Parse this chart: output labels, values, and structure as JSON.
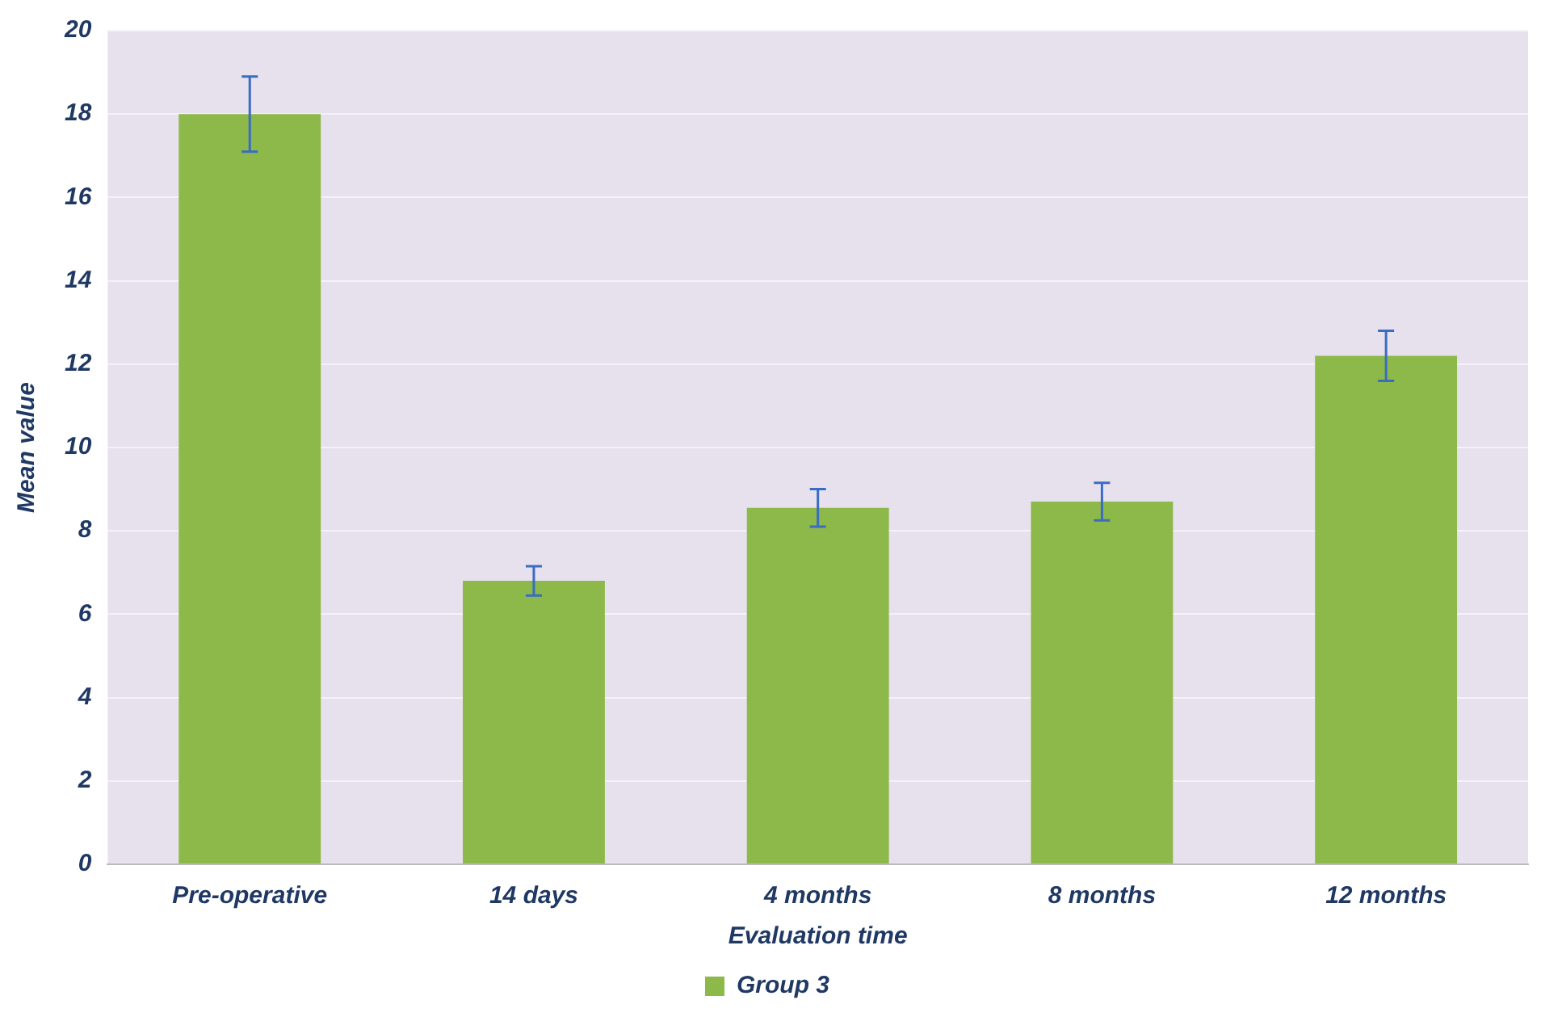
{
  "chart_data": {
    "type": "bar",
    "xlabel": "Evaluation time",
    "ylabel": "Mean value",
    "categories": [
      "Pre-operative",
      "14 days",
      "4 months",
      "8 months",
      "12 months"
    ],
    "series": [
      {
        "name": "Group 3",
        "color": "#8db84a",
        "values": [
          18,
          6.8,
          8.55,
          8.7,
          12.2
        ],
        "errors": [
          0.9,
          0.35,
          0.45,
          0.45,
          0.6
        ]
      }
    ],
    "ylim": [
      0,
      20
    ],
    "yticks": [
      0,
      2,
      4,
      6,
      8,
      10,
      12,
      14,
      16,
      18,
      20
    ],
    "grid": "y",
    "legend": "bottom"
  }
}
